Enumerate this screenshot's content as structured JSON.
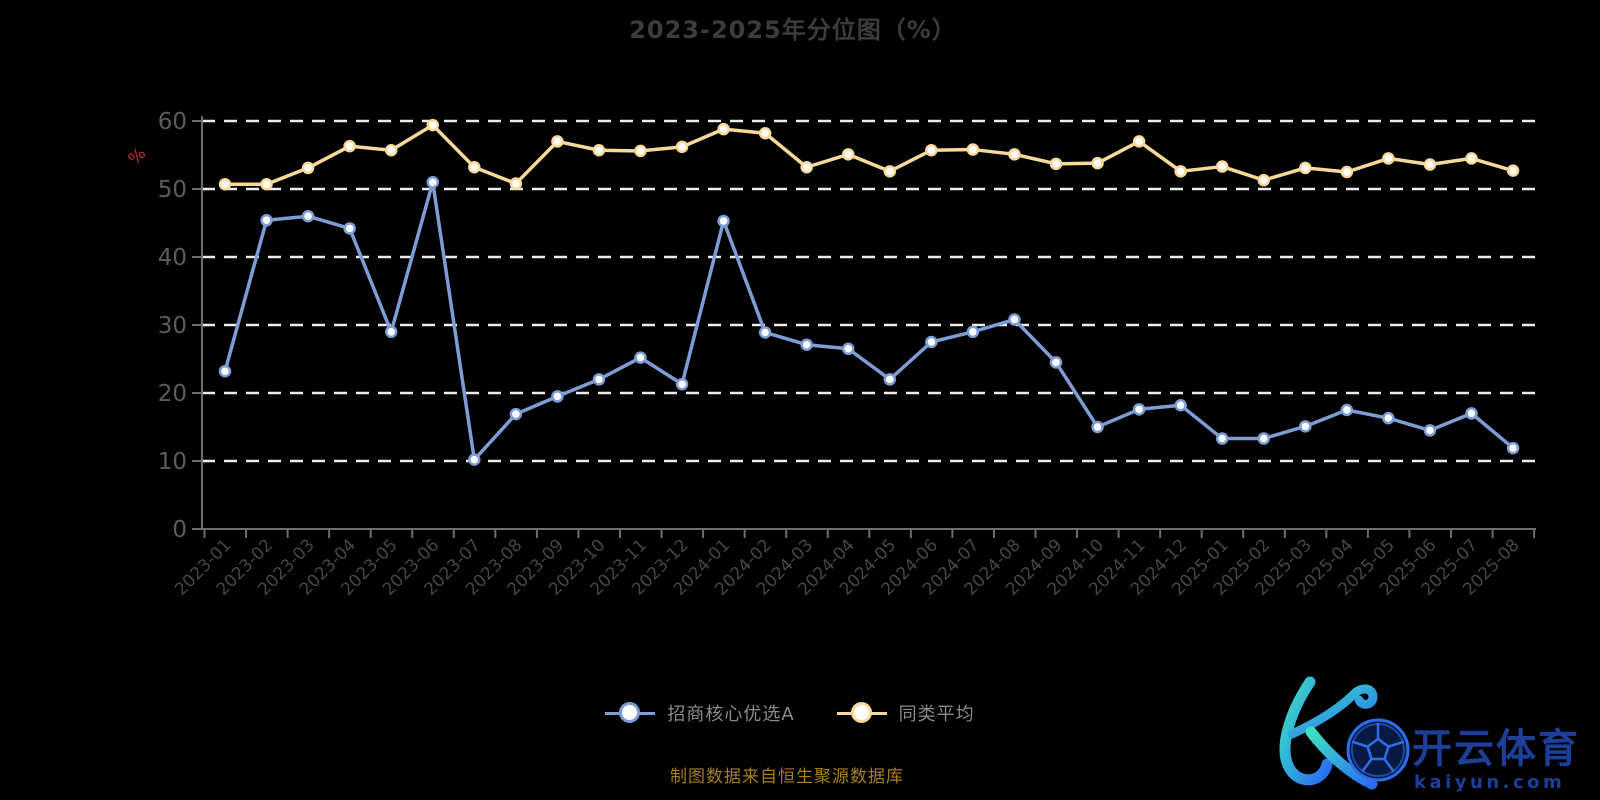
{
  "title": "2023-2025年分位图（%）",
  "source_note": "制图数据来自恒生聚源数据库",
  "y_axis": {
    "unit": "%",
    "ticks": [
      0,
      10,
      20,
      30,
      40,
      50,
      60
    ],
    "min": 0,
    "max": 60
  },
  "chart_data": {
    "type": "line",
    "title": "2023-2025年分位图（%）",
    "x": [
      "2023-01",
      "2023-02",
      "2023-03",
      "2023-04",
      "2023-05",
      "2023-06",
      "2023-07",
      "2023-08",
      "2023-09",
      "2023-10",
      "2023-11",
      "2023-12",
      "2024-01",
      "2024-02",
      "2024-03",
      "2024-04",
      "2024-05",
      "2024-06",
      "2024-07",
      "2024-08",
      "2024-09",
      "2024-10",
      "2024-11",
      "2024-12",
      "2025-01",
      "2025-02",
      "2025-03",
      "2025-04",
      "2025-05",
      "2025-06",
      "2025-07",
      "2025-08"
    ],
    "series": [
      {
        "name": "招商核心优选A",
        "color": "#7d9dd4",
        "values": [
          23.2,
          45.4,
          46.0,
          44.2,
          29.0,
          51.0,
          10.2,
          16.9,
          19.5,
          22.0,
          25.2,
          21.3,
          45.3,
          28.9,
          27.1,
          26.5,
          22.0,
          27.5,
          29.0,
          30.8,
          24.5,
          15.0,
          17.6,
          18.2,
          13.3,
          13.3,
          15.1,
          17.5,
          16.3,
          14.5,
          17.0,
          11.9
        ]
      },
      {
        "name": "同类平均",
        "color": "#f8d99a",
        "values": [
          50.7,
          50.7,
          53.1,
          56.3,
          55.7,
          59.4,
          53.2,
          50.8,
          57.0,
          55.7,
          55.6,
          56.2,
          58.8,
          58.2,
          53.2,
          55.1,
          52.6,
          55.7,
          55.8,
          55.1,
          53.7,
          53.8,
          57.0,
          52.6,
          53.3,
          51.3,
          53.1,
          52.5,
          54.5,
          53.6,
          54.5,
          52.7
        ]
      }
    ],
    "xlabel": "",
    "ylabel": "%",
    "ylim": [
      0,
      60
    ],
    "grid": "horizontal-dashed",
    "legend_position": "bottom",
    "background": "#000000"
  },
  "colors": {
    "title": "#3c3c3c",
    "axis_line": "#6e6e6e",
    "grid_line": "#ececec",
    "x_label": "#464646",
    "y_label": "#5c5c5c",
    "unit_label": "#c03030",
    "legend_text": "#8a8a8a",
    "note_text": "#a87e18",
    "point_fill": "#ffffff"
  },
  "logo": {
    "brand": "开云体育",
    "domain": "kaiyun.com",
    "colors": {
      "gradient_start": "#3ae2c2",
      "gradient_end": "#2a6cf5",
      "text": "#1d3f9a",
      "ball_fill": "#081a44",
      "ball_line": "#2e6fe8"
    }
  }
}
